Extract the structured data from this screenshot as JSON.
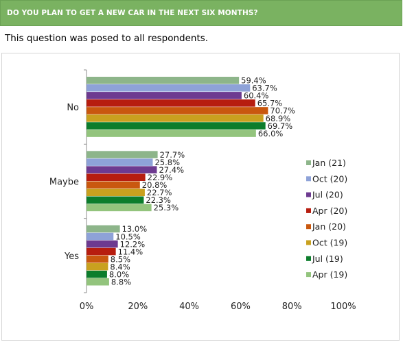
{
  "header": {
    "title": "DO YOU PLAN TO GET A NEW CAR IN THE NEXT SIX MONTHS?"
  },
  "subtitle": "This question was posed to all respondents.",
  "chart_data": {
    "type": "bar",
    "orientation": "horizontal",
    "categories": [
      "No",
      "Maybe",
      "Yes"
    ],
    "series": [
      {
        "name": "Jan (21)",
        "color": "#8db58a",
        "values": [
          59.4,
          27.7,
          13.0
        ]
      },
      {
        "name": "Oct (20)",
        "color": "#8ea2d8",
        "values": [
          63.7,
          25.8,
          10.5
        ]
      },
      {
        "name": "Jul (20)",
        "color": "#6d3a90",
        "values": [
          60.4,
          27.4,
          12.2
        ]
      },
      {
        "name": "Apr (20)",
        "color": "#b71d0f",
        "values": [
          65.7,
          22.9,
          11.4
        ]
      },
      {
        "name": "Jan (20)",
        "color": "#c9580f",
        "values": [
          70.7,
          20.8,
          8.5
        ]
      },
      {
        "name": "Oct (19)",
        "color": "#c9a11f",
        "values": [
          68.9,
          22.7,
          8.4
        ]
      },
      {
        "name": "Jul (19)",
        "color": "#0c7d2c",
        "values": [
          69.7,
          22.3,
          8.0
        ]
      },
      {
        "name": "Apr (19)",
        "color": "#93c47d",
        "values": [
          66.0,
          25.3,
          8.8
        ]
      }
    ],
    "value_suffix": "%",
    "xlim": [
      0,
      100
    ],
    "x_ticks": [
      "0%",
      "20%",
      "40%",
      "60%",
      "80%",
      "100%"
    ],
    "grid": false,
    "legend_position": "right"
  }
}
